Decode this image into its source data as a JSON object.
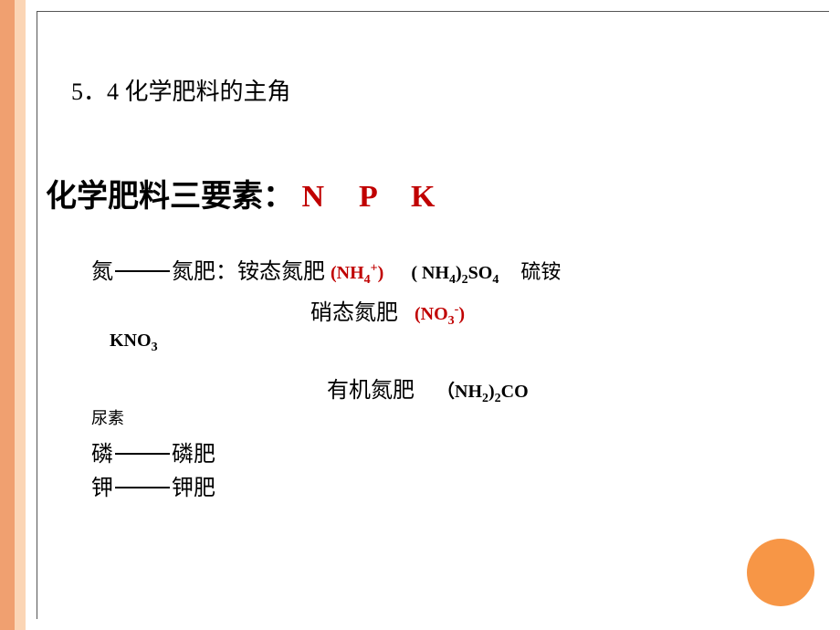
{
  "decoration": {
    "stripe_outer_color": "#f0a070",
    "stripe_inner_color": "#fbd5b5",
    "circle_color": "#f79646",
    "frame_border_color": "#555555"
  },
  "section": {
    "title": "5．4 化学肥料的主角"
  },
  "heading": {
    "prefix": "化学肥料三要素：",
    "elements": "N　P　K",
    "elements_color": "#c00000"
  },
  "lines": {
    "nitrogen_label_left": "氮",
    "nitrogen_label_right": "氮肥：铵态氮肥",
    "ammonium_formula_html": "(NH<sub>4</sub><sup>+</sup>)",
    "ammonium_sulfate_html": "( NH<sub>4</sub>)<sub>2</sub>SO<sub>4</sub>",
    "ammonium_sulfate_name": "硫铵",
    "nitrate_label": "硝态氮肥",
    "nitrate_formula_html": "(NO<sub>3</sub><sup>-</sup>)",
    "kno3_html": "KNO<sub>3</sub>",
    "organic_label": "有机氮肥",
    "urea_formula_html": "（NH<sub>2</sub>)<sub>2</sub>CO",
    "urea_name": "尿素",
    "phosphorus_left": "磷",
    "phosphorus_right": "磷肥",
    "potassium_left": "钾",
    "potassium_right": "钾肥"
  },
  "styling": {
    "body_bg": "#ffffff",
    "title_fontsize": 26,
    "heading_fontsize": 34,
    "line_fontsize": 24,
    "formula_fontsize": 20,
    "red_color": "#c00000",
    "black_color": "#000000"
  }
}
